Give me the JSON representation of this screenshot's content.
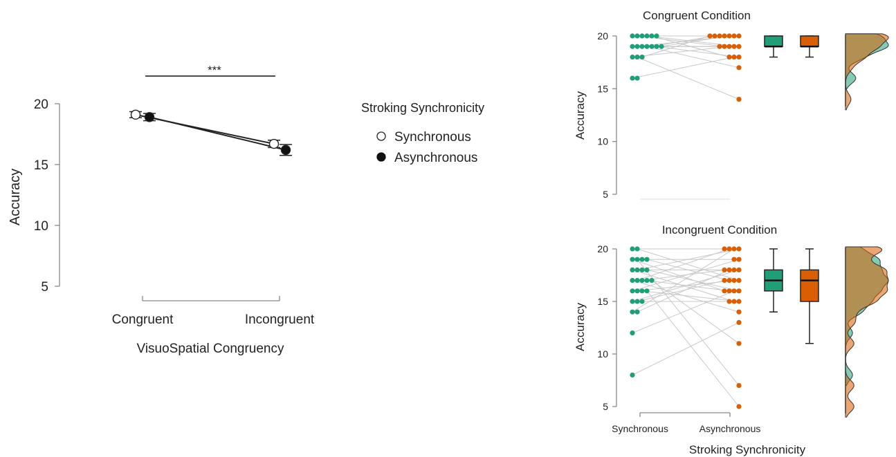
{
  "chart_data": [
    {
      "type": "line",
      "xlabel": "VisuoSpatial Congruency",
      "ylabel": "Accuracy",
      "categories": [
        "Congruent",
        "Incongruent"
      ],
      "yticks": [
        "5",
        "10",
        "15",
        "20"
      ],
      "ylim": [
        4,
        21
      ],
      "significance": "***",
      "legend_title": "Stroking Synchronicity",
      "legend_placement": "right",
      "series": [
        {
          "name": "Synchronous",
          "marker": "open-circle",
          "values": [
            19.1,
            16.7
          ],
          "errors": [
            0.25,
            0.3
          ]
        },
        {
          "name": "Asynchronous",
          "marker": "filled-circle",
          "values": [
            18.9,
            16.2
          ],
          "errors": [
            0.3,
            0.45
          ]
        }
      ]
    },
    {
      "type": "scatter",
      "title": "Congruent Condition",
      "ylabel": "Accuracy",
      "yticks": [
        "5",
        "10",
        "15",
        "20"
      ],
      "ylim": [
        5,
        20
      ],
      "groups": [
        "Synchronous",
        "Asynchronous"
      ],
      "colors": {
        "Synchronous": "#1f9e77",
        "Asynchronous": "#d95f02"
      },
      "synchronous": [
        20,
        20,
        20,
        20,
        20,
        20,
        19,
        19,
        19,
        19,
        19,
        19,
        19,
        18,
        18,
        18,
        16,
        16
      ],
      "asynchronous": [
        20,
        20,
        20,
        20,
        20,
        20,
        20,
        19,
        19,
        19,
        19,
        19,
        18,
        18,
        18,
        17,
        14
      ],
      "box_synchronous": {
        "min": 18,
        "q1": 19,
        "median": 19,
        "q3": 20,
        "max": 20
      },
      "box_asynchronous": {
        "min": 18,
        "q1": 19,
        "median": 19,
        "q3": 20,
        "max": 20
      }
    },
    {
      "type": "scatter",
      "title": "Incongruent Condition",
      "ylabel": "Accuracy",
      "xlabel": "Stroking Synchronicity",
      "categories": [
        "Synchronous",
        "Asynchronous"
      ],
      "yticks": [
        "5",
        "10",
        "15",
        "20"
      ],
      "ylim": [
        5,
        20
      ],
      "colors": {
        "Synchronous": "#1f9e77",
        "Asynchronous": "#d95f02"
      },
      "synchronous": [
        20,
        20,
        19,
        19,
        19,
        19,
        18,
        18,
        18,
        18,
        17,
        17,
        17,
        17,
        17,
        16,
        16,
        16,
        16,
        15,
        15,
        15,
        14,
        14,
        12,
        8
      ],
      "asynchronous": [
        20,
        20,
        20,
        20,
        19,
        19,
        18,
        18,
        18,
        18,
        17,
        17,
        17,
        17,
        16,
        16,
        16,
        16,
        15,
        15,
        15,
        14,
        13,
        11,
        7,
        5
      ],
      "box_synchronous": {
        "min": 14,
        "q1": 16,
        "median": 17,
        "q3": 18,
        "max": 20
      },
      "box_asynchronous": {
        "min": 11,
        "q1": 15,
        "median": 17,
        "q3": 18,
        "max": 20
      }
    }
  ]
}
